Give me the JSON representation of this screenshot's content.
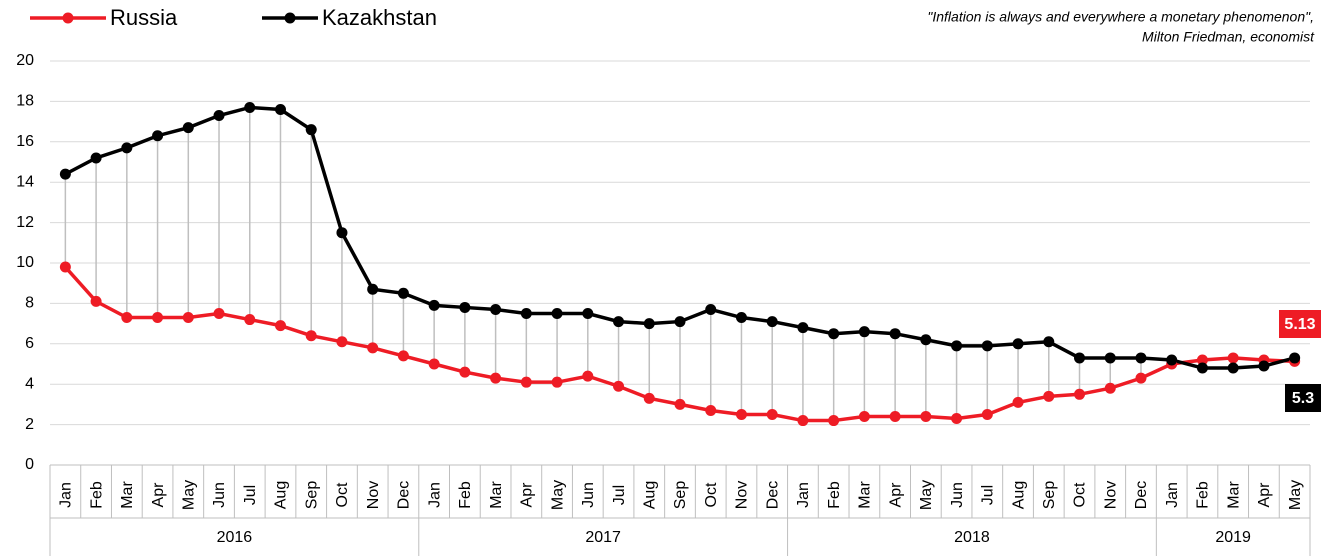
{
  "chart_data": {
    "type": "line",
    "annotation": [
      "\"Inflation is always and everywhere a monetary phenomenon\",",
      "Milton Friedman, economist"
    ],
    "categories": [
      "Jan",
      "Feb",
      "Mar",
      "Apr",
      "May",
      "Jun",
      "Jul",
      "Aug",
      "Sep",
      "Oct",
      "Nov",
      "Dec",
      "Jan",
      "Feb",
      "Mar",
      "Apr",
      "May",
      "Jun",
      "Jul",
      "Aug",
      "Sep",
      "Oct",
      "Nov",
      "Dec",
      "Jan",
      "Feb",
      "Mar",
      "Apr",
      "May",
      "Jun",
      "Jul",
      "Aug",
      "Sep",
      "Oct",
      "Nov",
      "Dec",
      "Jan",
      "Feb",
      "Mar",
      "Apr",
      "May"
    ],
    "years": [
      "2016",
      "2017",
      "2018",
      "2019"
    ],
    "series": [
      {
        "name": "Russia",
        "color": "#ee1c25",
        "values": [
          9.8,
          8.1,
          7.3,
          7.3,
          7.3,
          7.5,
          7.2,
          6.9,
          6.4,
          6.1,
          5.8,
          5.4,
          5.0,
          4.6,
          4.3,
          4.1,
          4.1,
          4.4,
          3.9,
          3.3,
          3.0,
          2.7,
          2.5,
          2.5,
          2.2,
          2.2,
          2.4,
          2.4,
          2.4,
          2.3,
          2.5,
          3.1,
          3.4,
          3.5,
          3.8,
          4.3,
          5.0,
          5.2,
          5.3,
          5.2,
          5.13
        ]
      },
      {
        "name": "Kazakhstan",
        "color": "#000000",
        "values": [
          14.4,
          15.2,
          15.7,
          16.3,
          16.7,
          17.3,
          17.7,
          17.6,
          16.6,
          11.5,
          8.7,
          8.5,
          7.9,
          7.8,
          7.7,
          7.5,
          7.5,
          7.5,
          7.1,
          7.0,
          7.1,
          7.7,
          7.3,
          7.1,
          6.8,
          6.5,
          6.6,
          6.5,
          6.2,
          5.9,
          5.9,
          6.0,
          6.1,
          5.3,
          5.3,
          5.3,
          5.2,
          4.8,
          4.8,
          4.9,
          5.3
        ]
      }
    ],
    "ylim": [
      0,
      20
    ],
    "yticks": [
      0,
      2,
      4,
      6,
      8,
      10,
      12,
      14,
      16,
      18,
      20
    ],
    "grid": true,
    "legend": "top-left"
  }
}
